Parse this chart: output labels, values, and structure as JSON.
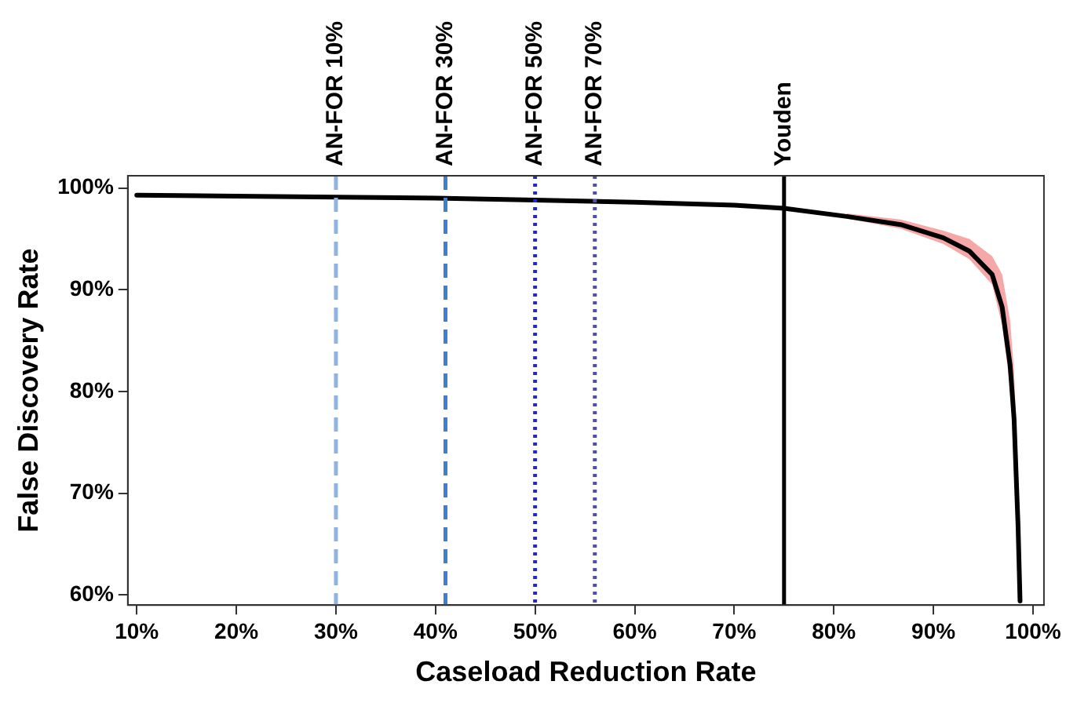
{
  "chart_data": {
    "type": "line",
    "xlabel": "Caseload Reduction Rate",
    "ylabel": "False Discovery Rate",
    "xlim": [
      9.1,
      101.1
    ],
    "ylim": [
      59,
      101.2
    ],
    "xticks": [
      {
        "value": 10,
        "label": "10%"
      },
      {
        "value": 20,
        "label": "20%"
      },
      {
        "value": 30,
        "label": "30%"
      },
      {
        "value": 40,
        "label": "40%"
      },
      {
        "value": 50,
        "label": "50%"
      },
      {
        "value": 60,
        "label": "60%"
      },
      {
        "value": 70,
        "label": "70%"
      },
      {
        "value": 80,
        "label": "80%"
      },
      {
        "value": 90,
        "label": "90%"
      },
      {
        "value": 100,
        "label": "100%"
      }
    ],
    "yticks": [
      {
        "value": 60,
        "label": "60%"
      },
      {
        "value": 70,
        "label": "70%"
      },
      {
        "value": 80,
        "label": "80%"
      },
      {
        "value": 90,
        "label": "90%"
      },
      {
        "value": 100,
        "label": "100%"
      }
    ],
    "grid": false,
    "legend": false,
    "marker": "none",
    "line_style": "solid",
    "series": [
      {
        "color": "#000000",
        "x": [
          10,
          20,
          30,
          40,
          50,
          60,
          70,
          75,
          81.3,
          86.7,
          91,
          93.6,
          95.9,
          96.9,
          97.7,
          98.1,
          98.3,
          98.5,
          98.7
        ],
        "values": [
          99.3,
          99.2,
          99.1,
          99.0,
          98.8,
          98.6,
          98.3,
          98.0,
          97.2,
          96.4,
          95.1,
          93.8,
          91.5,
          88.3,
          82.6,
          77.3,
          72.0,
          66.8,
          59.4
        ],
        "lower": [
          null,
          null,
          null,
          null,
          null,
          null,
          null,
          null,
          97.0,
          96.0,
          94.5,
          93.0,
          90.5,
          86.5,
          80.5,
          75.5,
          70.0,
          64.0,
          59.2
        ],
        "upper": [
          null,
          null,
          null,
          null,
          null,
          null,
          null,
          null,
          97.5,
          96.9,
          95.8,
          95.0,
          93.3,
          91.5,
          87.0,
          82.0,
          77.0,
          72.0,
          60.5
        ]
      }
    ],
    "ref_lines": [
      {
        "axis": "x",
        "value": 30,
        "label": "AN-FOR 10%",
        "color": "#8fb4e3",
        "line_style": "dashed"
      },
      {
        "axis": "x",
        "value": 41,
        "label": "AN-FOR 30%",
        "color": "#3f7fd0",
        "line_style": "dashed"
      },
      {
        "axis": "x",
        "value": 50,
        "label": "AN-FOR 50%",
        "color": "#2626c8",
        "line_style": "dotted"
      },
      {
        "axis": "x",
        "value": 56,
        "label": "AN-FOR 70%",
        "color": "#5050a8",
        "line_style": "dotted"
      },
      {
        "axis": "x",
        "value": 75,
        "label": "Youden",
        "color": "#000000",
        "line_style": "solid"
      }
    ]
  }
}
